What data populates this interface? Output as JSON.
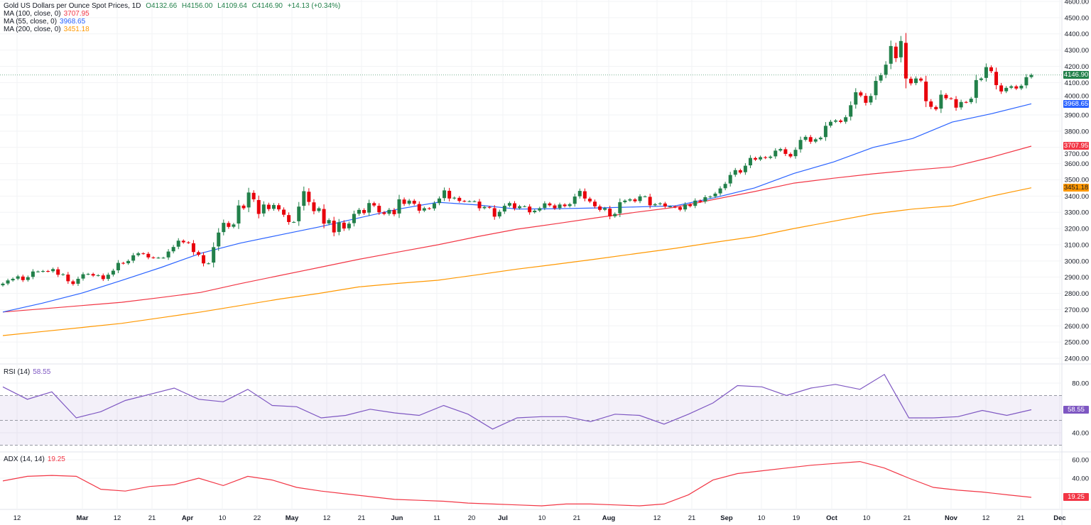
{
  "legend": {
    "title": "Gold US Dollars per Ounce Spot Prices, 1D",
    "open": "O4132.66",
    "high": "H4156.00",
    "low": "L4109.64",
    "close": "C4146.90",
    "change": "+14.13 (+0.34%)",
    "ma100_label": "MA (100, close, 0)",
    "ma100_value": "3707.95",
    "ma55_label": "MA (55, close, 0)",
    "ma55_value": "3968.65",
    "ma200_label": "MA (200, close, 0)",
    "ma200_value": "3451.18",
    "rsi_label": "RSI (14)",
    "rsi_value": "58.55",
    "adx_label": "ADX (14, 14)",
    "adx_value": "19.25"
  },
  "colors": {
    "up": "#22804a",
    "down": "#e8000b",
    "ma55": "#2962ff",
    "ma100": "#f23645",
    "ma200": "#ff9800",
    "rsi": "#7e57c2",
    "adx": "#f23645"
  },
  "chart_data": [
    {
      "type": "candlestick",
      "title": "Gold US Dollars per Ounce Spot Prices, 1D",
      "ylim": [
        2400,
        4600
      ],
      "y_ticks": [
        "4600.00",
        "4500.00",
        "4400.00",
        "4300.00",
        "4200.00",
        "4100.00",
        "4000.00",
        "3900.00",
        "3800.00",
        "3700.00",
        "3600.00",
        "3500.00",
        "3400.00",
        "3300.00",
        "3200.00",
        "3100.00",
        "3000.00",
        "2900.00",
        "2800.00",
        "2700.00",
        "2600.00",
        "2500.00",
        "2400.00"
      ],
      "x_ticks": [
        "12",
        "Mar",
        "12",
        "21",
        "Apr",
        "10",
        "22",
        "May",
        "12",
        "21",
        "Jun",
        "11",
        "20",
        "Jul",
        "10",
        "21",
        "Aug",
        "12",
        "21",
        "Sep",
        "10",
        "19",
        "Oct",
        "10",
        "21",
        "Nov",
        "12",
        "21",
        "Dec"
      ],
      "last_price": "4146.90",
      "closes": [
        2860,
        2880,
        2890,
        2905,
        2882,
        2900,
        2935,
        2935,
        2938,
        2936,
        2950,
        2915,
        2918,
        2875,
        2858,
        2890,
        2918,
        2920,
        2910,
        2912,
        2888,
        2915,
        2940,
        2988,
        2985,
        3000,
        3035,
        3047,
        3045,
        3022,
        3020,
        3020,
        3020,
        3058,
        3086,
        3125,
        3115,
        3112,
        3055,
        3038,
        2985,
        2985,
        3085,
        3175,
        3235,
        3210,
        3225,
        3342,
        3325,
        3422,
        3380,
        3290,
        3348,
        3320,
        3345,
        3318,
        3285,
        3240,
        3240,
        3335,
        3430,
        3364,
        3307,
        3325,
        3230,
        3252,
        3176,
        3238,
        3200,
        3230,
        3290,
        3315,
        3295,
        3357,
        3342,
        3300,
        3290,
        3315,
        3288,
        3380,
        3352,
        3372,
        3353,
        3310,
        3325,
        3322,
        3355,
        3385,
        3435,
        3385,
        3390,
        3370,
        3368,
        3368,
        3368,
        3325,
        3333,
        3328,
        3273,
        3303,
        3340,
        3357,
        3325,
        3337,
        3337,
        3300,
        3310,
        3325,
        3355,
        3343,
        3325,
        3348,
        3338,
        3350,
        3397,
        3432,
        3385,
        3367,
        3337,
        3315,
        3325,
        3275,
        3290,
        3362,
        3372,
        3380,
        3368,
        3398,
        3398,
        3343,
        3350,
        3355,
        3336,
        3336,
        3332,
        3316,
        3348,
        3338,
        3372,
        3365,
        3393,
        3397,
        3415,
        3447,
        3475,
        3530,
        3560,
        3545,
        3587,
        3635,
        3625,
        3640,
        3635,
        3643,
        3680,
        3690,
        3660,
        3644,
        3685,
        3746,
        3765,
        3735,
        3750,
        3760,
        3833,
        3858,
        3866,
        3857,
        3886,
        3960,
        4040,
        4020,
        3975,
        4017,
        4110,
        4145,
        4210,
        4325,
        4250,
        4356,
        4125,
        4095,
        4125,
        4112,
        3985,
        3950,
        3935,
        4025,
        4003,
        4000,
        3945,
        3980,
        3978,
        4000,
        4115,
        4125,
        4195,
        4170,
        4084,
        4045,
        4067,
        4077,
        4063,
        4080,
        4133,
        4146.9
      ],
      "series": [
        {
          "name": "MA (55, close, 0)",
          "values": [
            2685,
            2740,
            2802,
            2880,
            2960,
            3047,
            3110,
            3160,
            3210,
            3265,
            3320,
            3362,
            3345,
            3320,
            3322,
            3327,
            3333,
            3340,
            3390,
            3450,
            3540,
            3610,
            3700,
            3755,
            3856,
            3908,
            3968.65
          ]
        },
        {
          "name": "MA (100, close, 0)",
          "values": [
            2685,
            2705,
            2725,
            2745,
            2775,
            2806,
            2860,
            2910,
            2960,
            3010,
            3055,
            3100,
            3150,
            3196,
            3230,
            3266,
            3300,
            3331,
            3380,
            3428,
            3480,
            3510,
            3537,
            3560,
            3580,
            3640,
            3707.95
          ]
        },
        {
          "name": "MA (200, close, 0)",
          "values": [
            2540,
            2565,
            2590,
            2615,
            2650,
            2685,
            2725,
            2765,
            2800,
            2840,
            2862,
            2881,
            2915,
            2950,
            2980,
            3012,
            3045,
            3078,
            3115,
            3150,
            3200,
            3245,
            3290,
            3320,
            3340,
            3400,
            3451.18
          ]
        }
      ]
    },
    {
      "type": "line",
      "title": "RSI (14)",
      "ylim": [
        30,
        94
      ],
      "y_ticks": [
        "80.00",
        "40.00"
      ],
      "bands": [
        30,
        50,
        70
      ],
      "values": [
        77,
        67,
        73,
        52,
        57,
        66,
        71,
        76,
        67,
        65,
        75,
        62,
        61,
        52,
        54,
        59,
        56,
        54,
        62,
        55,
        43,
        52,
        53,
        53,
        49,
        55,
        54,
        47,
        55,
        64,
        78,
        77,
        70,
        76,
        79,
        75,
        87,
        52,
        52,
        53,
        58,
        54,
        58.55
      ]
    },
    {
      "type": "line",
      "title": "ADX (14, 14)",
      "y_ticks": [
        "60.00",
        "40.00"
      ],
      "values": [
        37,
        42,
        43,
        42,
        28,
        26,
        31,
        33,
        40,
        32,
        42,
        38,
        30,
        26,
        23,
        20,
        17,
        16,
        15,
        13,
        12,
        11,
        10,
        12,
        12,
        11,
        10,
        12,
        22,
        38,
        45,
        48,
        51,
        54,
        56,
        58,
        51,
        40,
        30,
        27,
        25,
        22,
        19.25
      ]
    }
  ]
}
